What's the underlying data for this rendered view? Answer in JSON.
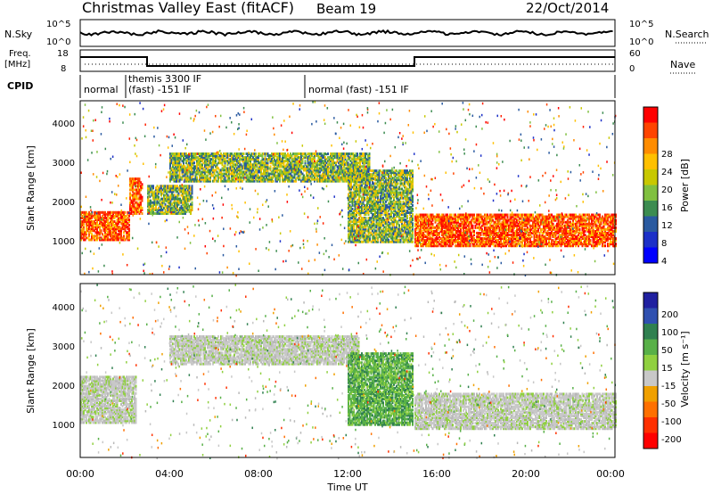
{
  "header": {
    "station": "Christmas Valley East (fitACF)",
    "beam": "Beam 19",
    "date": "22/Oct/2014"
  },
  "top_panels": {
    "nsky_label": "N.Sky",
    "nsky_ticks": [
      "10^5",
      "10^0"
    ],
    "nsearch_label": "N.Search",
    "nsearch_ticks": [
      "10^5",
      "10^0"
    ],
    "freq_label_1": "Freq.",
    "freq_label_2": "[MHz]",
    "freq_ticks": [
      "18",
      "8"
    ],
    "nave_label": "Nave",
    "nave_ticks": [
      "60",
      "0"
    ],
    "cpid_label": "CPID",
    "cpid_segments": [
      {
        "line1": "normal",
        "line2": "",
        "start_hour": 0,
        "end_hour": 1.7
      },
      {
        "line1": "themis 3300 IF",
        "line2": "(fast) -151 IF",
        "start_hour": 1.7,
        "end_hour": 10.0
      },
      {
        "line1": "normal (fast) -151 IF",
        "line2": "",
        "start_hour": 10.0,
        "end_hour": 24
      }
    ]
  },
  "colorbars": {
    "power": {
      "label": "Power [dB]",
      "ticks": [
        "28",
        "24",
        "20",
        "16",
        "12",
        "8",
        "4"
      ],
      "colors": [
        "#ff0000",
        "#ff4400",
        "#ff8c00",
        "#ffc000",
        "#c8c800",
        "#80c040",
        "#3c8c50",
        "#2a5aa0",
        "#1c30c8",
        "#0000ff"
      ]
    },
    "velocity": {
      "label": "Velocity [m s⁻¹]",
      "ticks": [
        "200",
        "100",
        "50",
        "15",
        "-15",
        "-50",
        "-100",
        "-200"
      ],
      "colors": [
        "#2020a0",
        "#3050b0",
        "#308050",
        "#58b048",
        "#90d040",
        "#c8c8c8",
        "#f0a000",
        "#ff7000",
        "#ff3000",
        "#ff0000"
      ]
    }
  },
  "chart_data": {
    "type": "heatmap",
    "xlabel": "Time UT",
    "x_ticks": [
      "00:00",
      "04:00",
      "08:00",
      "12:00",
      "16:00",
      "20:00",
      "00:00"
    ],
    "xlim_hours": [
      0,
      24
    ],
    "ylabel": "Slant Range [km]",
    "y_ticks": [
      "1000",
      "2000",
      "3000",
      "4000"
    ],
    "ylim_km": [
      200,
      4500
    ],
    "power_bands": [
      {
        "hours": [
          0,
          2.2
        ],
        "range_km": [
          1050,
          1750
        ],
        "level": "high"
      },
      {
        "hours": [
          2.2,
          2.8
        ],
        "range_km": [
          1700,
          2600
        ],
        "level": "high"
      },
      {
        "hours": [
          3.0,
          5.0
        ],
        "range_km": [
          1700,
          2400
        ],
        "level": "medium"
      },
      {
        "hours": [
          4.0,
          13.0
        ],
        "range_km": [
          2500,
          3200
        ],
        "level": "medium"
      },
      {
        "hours": [
          12.0,
          14.9
        ],
        "range_km": [
          1000,
          2800
        ],
        "level": "medium"
      },
      {
        "hours": [
          15.0,
          24
        ],
        "range_km": [
          900,
          1700
        ],
        "level": "high"
      }
    ],
    "velocity_bands": [
      {
        "hours": [
          0,
          2.5
        ],
        "range_km": [
          1050,
          2200
        ],
        "level": "near-zero"
      },
      {
        "hours": [
          4.0,
          12.5
        ],
        "range_km": [
          2500,
          3200
        ],
        "level": "near-zero"
      },
      {
        "hours": [
          12.0,
          14.9
        ],
        "range_km": [
          1000,
          2800
        ],
        "level": "positive"
      },
      {
        "hours": [
          15.0,
          24
        ],
        "range_km": [
          900,
          1800
        ],
        "level": "near-zero"
      }
    ]
  }
}
